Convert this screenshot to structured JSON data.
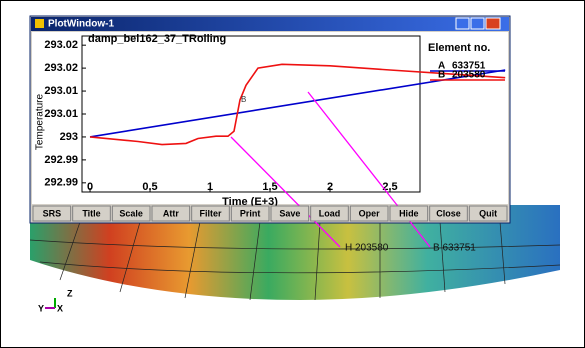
{
  "window": {
    "title": "PlotWindow-1",
    "buttons": [
      "SRS",
      "Title",
      "Scale",
      "Attr",
      "Filter",
      "Print",
      "Save",
      "Load",
      "Oper",
      "Hide",
      "Close",
      "Quit"
    ]
  },
  "plot": {
    "title": "damp_bel162_37_TRolling",
    "x_label": "Time (E+3)",
    "y_label": "Temperature",
    "legend_title": "Element no.",
    "xlim": [
      -0.067,
      2.75
    ],
    "ylim": [
      292.9856,
      293.0264
    ],
    "xticks": [
      0,
      0.5,
      1,
      1.5,
      2,
      2.5
    ],
    "yticks": [
      {
        "value": 293.024,
        "label": "293.02"
      },
      {
        "value": 293.018,
        "label": "293.02"
      },
      {
        "value": 293.012,
        "label": "293.01"
      },
      {
        "value": 293.006,
        "label": "293.01"
      },
      293,
      {
        "value": 292.994,
        "label": "292.99"
      },
      {
        "value": 292.988,
        "label": "292.99"
      }
    ],
    "series": [
      {
        "letter": "A",
        "name": "633751",
        "color": "#0000cc",
        "x": [
          0,
          3.46
        ],
        "y": [
          293,
          293.0175
        ]
      },
      {
        "letter": "B",
        "name": "203580",
        "color": "#ee1111",
        "x": [
          0,
          0.4,
          0.6,
          0.8,
          0.9,
          1.05,
          1.15,
          1.2,
          1.25,
          1.3,
          1.4,
          1.6,
          2,
          2.5,
          3,
          3.46
        ],
        "y": [
          293,
          292.9988,
          292.998,
          292.9983,
          292.9996,
          293.0002,
          293.0002,
          293.0015,
          293.0097,
          293.0135,
          293.018,
          293.019,
          293.0186,
          293.0175,
          293.0165,
          293.0155
        ]
      }
    ],
    "point_marker": "B"
  },
  "annotations": [
    "H 203580",
    "B 633751"
  ],
  "axes_triad": {
    "z": "Z",
    "y": "Y",
    "x": "X"
  }
}
